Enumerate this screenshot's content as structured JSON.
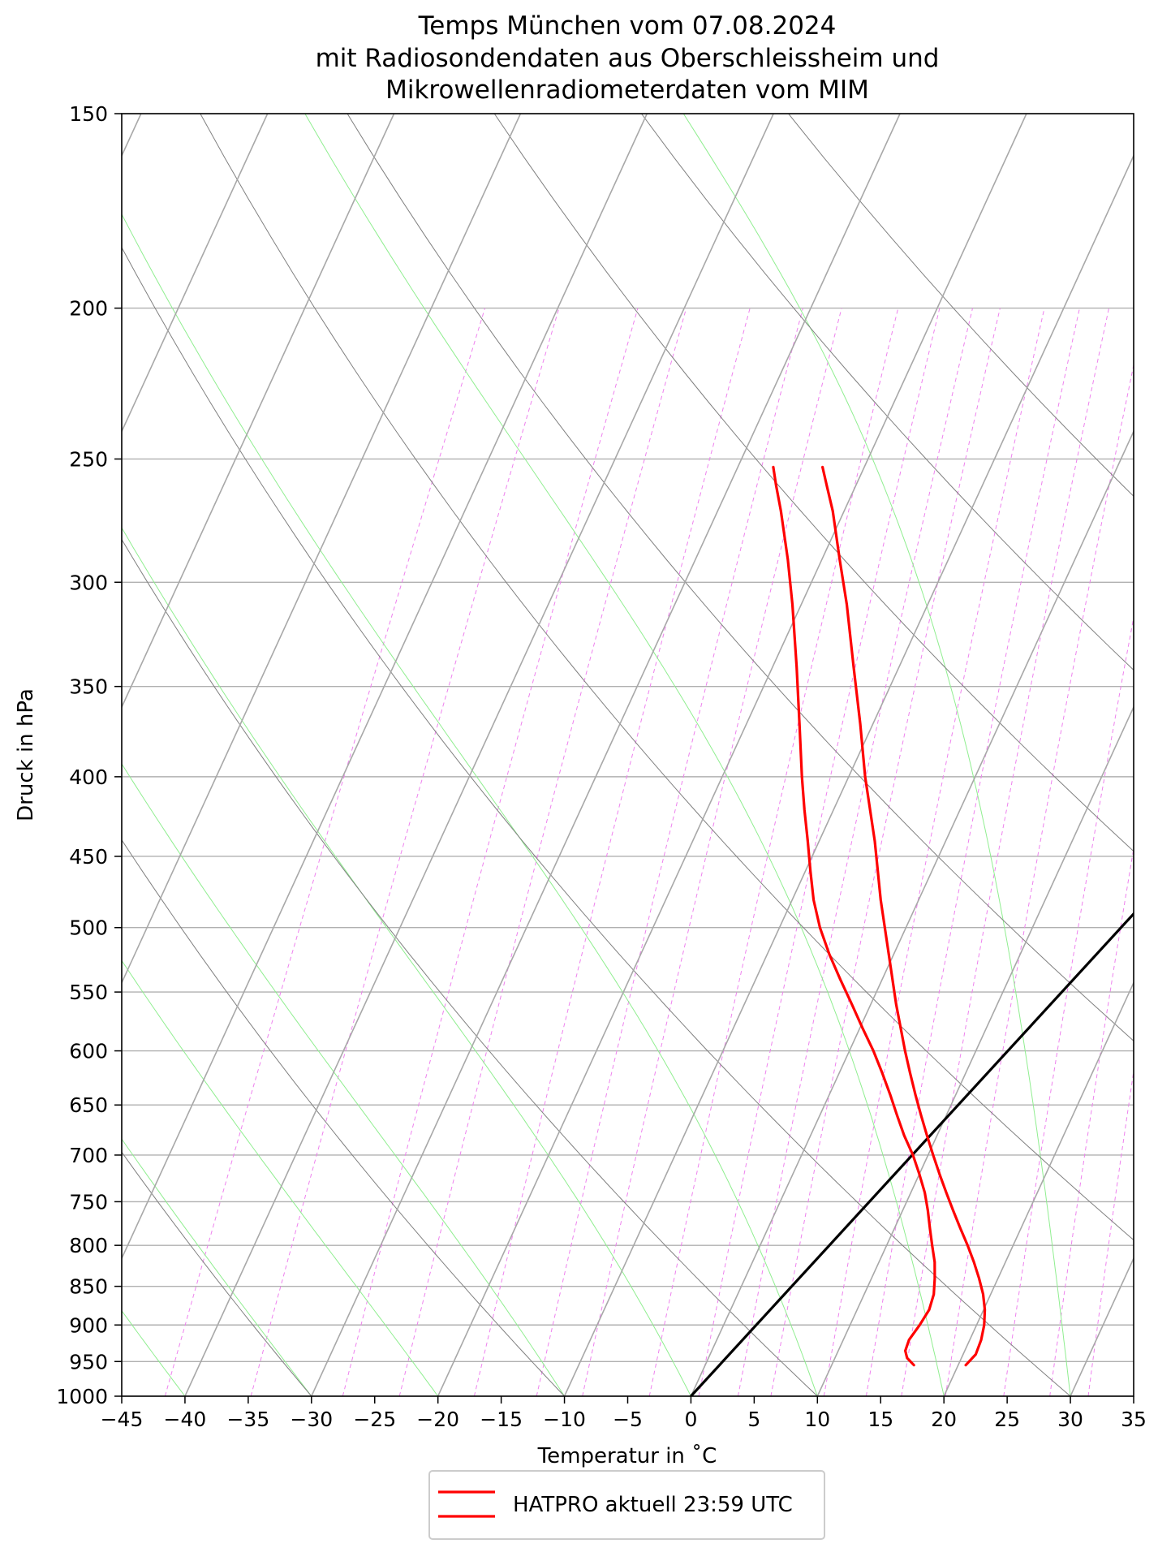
{
  "chart_data": {
    "type": "line",
    "title_lines": [
      "Temps München vom 07.08.2024",
      "mit Radiosondendaten aus Oberschleissheim und",
      "Mikrowellenradiometerdaten vom MIM"
    ],
    "xlabel": "Temperatur in  ˚C",
    "ylabel": "Druck in hPa",
    "xlim": [
      -45,
      35
    ],
    "ylim": [
      1000,
      150
    ],
    "yscale": "log",
    "x_ticks": [
      -45,
      -40,
      -35,
      -30,
      -25,
      -20,
      -15,
      -10,
      -5,
      0,
      5,
      10,
      15,
      20,
      25,
      30,
      35
    ],
    "x_tick_labels": [
      "−45",
      "−40",
      "−35",
      "−30",
      "−25",
      "−20",
      "−15",
      "−10",
      "−5",
      "0",
      "5",
      "10",
      "15",
      "20",
      "25",
      "30",
      "35"
    ],
    "y_ticks": [
      1000,
      950,
      900,
      850,
      800,
      750,
      700,
      650,
      600,
      550,
      500,
      450,
      400,
      350,
      300,
      250,
      200,
      150
    ],
    "y_tick_labels": [
      "1000",
      "950",
      "900",
      "850",
      "800",
      "750",
      "700",
      "650",
      "600",
      "550",
      "500",
      "450",
      "400",
      "350",
      "300",
      "250",
      "200",
      "150"
    ],
    "grid": true,
    "legend_position": "bottom-center",
    "series": [
      {
        "name": "HATPRO aktuell 23:59 UTC",
        "color": "#ff0000",
        "role": "temperature",
        "points": [
          {
            "p": 955,
            "t": 20.6
          },
          {
            "p": 940,
            "t": 21.0
          },
          {
            "p": 920,
            "t": 20.9
          },
          {
            "p": 900,
            "t": 20.6
          },
          {
            "p": 880,
            "t": 20.1
          },
          {
            "p": 860,
            "t": 19.4
          },
          {
            "p": 840,
            "t": 18.5
          },
          {
            "p": 820,
            "t": 17.5
          },
          {
            "p": 800,
            "t": 16.4
          },
          {
            "p": 780,
            "t": 15.2
          },
          {
            "p": 760,
            "t": 14.0
          },
          {
            "p": 740,
            "t": 12.8
          },
          {
            "p": 720,
            "t": 11.6
          },
          {
            "p": 700,
            "t": 10.4
          },
          {
            "p": 680,
            "t": 9.2
          },
          {
            "p": 660,
            "t": 8.0
          },
          {
            "p": 640,
            "t": 6.8
          },
          {
            "p": 620,
            "t": 5.6
          },
          {
            "p": 600,
            "t": 4.4
          },
          {
            "p": 560,
            "t": 2.0
          },
          {
            "p": 520,
            "t": -0.4
          },
          {
            "p": 480,
            "t": -3.0
          },
          {
            "p": 440,
            "t": -5.6
          },
          {
            "p": 400,
            "t": -8.7
          },
          {
            "p": 370,
            "t": -11.0
          },
          {
            "p": 340,
            "t": -13.6
          },
          {
            "p": 310,
            "t": -16.4
          },
          {
            "p": 290,
            "t": -18.6
          },
          {
            "p": 270,
            "t": -20.9
          },
          {
            "p": 260,
            "t": -22.3
          },
          {
            "p": 253,
            "t": -23.3
          }
        ]
      },
      {
        "name": "HATPRO aktuell 23:59 UTC",
        "color": "#ff0000",
        "role": "dewpoint",
        "points": [
          {
            "p": 955,
            "t": 16.5
          },
          {
            "p": 945,
            "t": 15.7
          },
          {
            "p": 935,
            "t": 15.3
          },
          {
            "p": 920,
            "t": 15.2
          },
          {
            "p": 900,
            "t": 15.5
          },
          {
            "p": 880,
            "t": 15.7
          },
          {
            "p": 860,
            "t": 15.5
          },
          {
            "p": 840,
            "t": 15.0
          },
          {
            "p": 820,
            "t": 14.4
          },
          {
            "p": 800,
            "t": 13.6
          },
          {
            "p": 780,
            "t": 12.8
          },
          {
            "p": 760,
            "t": 12.0
          },
          {
            "p": 740,
            "t": 11.1
          },
          {
            "p": 720,
            "t": 10.0
          },
          {
            "p": 700,
            "t": 8.8
          },
          {
            "p": 680,
            "t": 7.4
          },
          {
            "p": 660,
            "t": 6.1
          },
          {
            "p": 640,
            "t": 4.8
          },
          {
            "p": 620,
            "t": 3.4
          },
          {
            "p": 600,
            "t": 1.9
          },
          {
            "p": 580,
            "t": 0.2
          },
          {
            "p": 560,
            "t": -1.5
          },
          {
            "p": 540,
            "t": -3.3
          },
          {
            "p": 520,
            "t": -5.1
          },
          {
            "p": 500,
            "t": -6.8
          },
          {
            "p": 480,
            "t": -8.3
          },
          {
            "p": 460,
            "t": -9.6
          },
          {
            "p": 440,
            "t": -10.9
          },
          {
            "p": 420,
            "t": -12.3
          },
          {
            "p": 400,
            "t": -13.7
          },
          {
            "p": 370,
            "t": -15.8
          },
          {
            "p": 340,
            "t": -18.1
          },
          {
            "p": 310,
            "t": -20.7
          },
          {
            "p": 290,
            "t": -22.7
          },
          {
            "p": 270,
            "t": -25.0
          },
          {
            "p": 260,
            "t": -26.3
          },
          {
            "p": 253,
            "t": -27.2
          }
        ]
      }
    ],
    "parcel_line": {
      "color": "#000000",
      "points": [
        {
          "p": 1000,
          "t": 0
        },
        {
          "p": 240,
          "t": 35
        }
      ]
    },
    "colors": {
      "isotherm": "#a8a8a8",
      "dry_adiabat": "#808080",
      "moist_adiabat": "#90ee90",
      "mixing_ratio": "#ee82ee",
      "pressure_grid": "#b0b0b0"
    }
  }
}
